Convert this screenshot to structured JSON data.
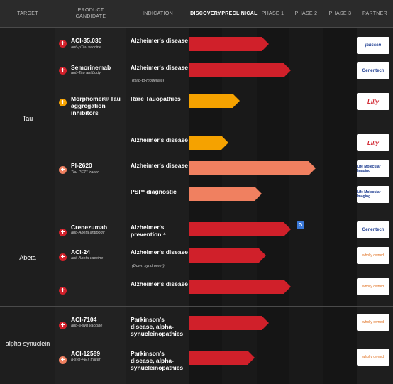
{
  "header": {
    "target": "TARGET",
    "product_candidate_1": "PRODUCT",
    "product_candidate_2": "CANDIDATE",
    "indication": "INDICATION",
    "discovery": "DISCOVERY",
    "preclinical": "PRECLINICAL",
    "phase1": "PHASE 1",
    "phase2": "PHASE 2",
    "phase3": "PHASE 3",
    "partner": "PARTNER"
  },
  "groups": {
    "tau": "Tau",
    "abeta": "Abeta",
    "alpha_synuclein": "alpha-synuclein"
  },
  "rows": [
    {
      "product": "ACI-35.030",
      "sub": "anti-pTau vaccine",
      "indication": "Alzheimer's disease",
      "ind_sub": "",
      "bar_color": "#d0202a",
      "progress_pct": 55,
      "partner": "janssen"
    },
    {
      "product": "Semorinemab",
      "sub": "anti-Tau antibody",
      "indication": "Alzheimer's disease",
      "ind_sub": "(mild-to-moderate)",
      "bar_color": "#d0202a",
      "progress_pct": 70,
      "partner": "Genentech"
    },
    {
      "product": "Morphomer® Tau aggregation inhibitors",
      "sub": "",
      "indication": "Rare Tauopathies",
      "ind_sub": "",
      "bar_color": "#f5a200",
      "progress_pct": 35,
      "partner": "Lilly"
    },
    {
      "product": "",
      "sub": "",
      "indication": "Alzheimer's disease",
      "ind_sub": "",
      "bar_color": "#f5a200",
      "progress_pct": 27,
      "partner": "Lilly"
    },
    {
      "product": "PI-2620",
      "sub": "Tau-PET² tracer",
      "indication": "Alzheimer's disease",
      "ind_sub": "",
      "bar_color": "#f08060",
      "progress_pct": 87,
      "partner": "Life Molecular Imaging"
    },
    {
      "product": "",
      "sub": "",
      "indication": "PSP³ diagnostic",
      "ind_sub": "",
      "bar_color": "#f08060",
      "progress_pct": 50,
      "partner": "Life Molecular Imaging"
    },
    {
      "product": "Crenezumab",
      "sub": "anti-Abeta antibody",
      "indication": "Alzheimer's prevention ⁴",
      "ind_sub": "",
      "bar_color": "#d0202a",
      "progress_pct": 70,
      "partner": "Genentech"
    },
    {
      "product": "ACI-24",
      "sub": "anti-Abeta vaccine",
      "indication": "Alzheimer's disease",
      "ind_sub": "(Down syndrome⁵)",
      "bar_color": "#d0202a",
      "progress_pct": 53,
      "partner": "wholly owned"
    },
    {
      "product": "",
      "sub": "",
      "indication": "Alzheimer's disease",
      "ind_sub": "",
      "bar_color": "#d0202a",
      "progress_pct": 70,
      "partner": "wholly owned"
    },
    {
      "product": "ACI-7104",
      "sub": "anti-a-syn vaccine",
      "indication": "Parkinson's disease, alpha-synucleinopathies",
      "ind_sub": "",
      "bar_color": "#d0202a",
      "progress_pct": 55,
      "partner": "wholly owned"
    },
    {
      "product": "ACI-12589",
      "sub": "a-syn-PET tracer",
      "indication": "Parkinson's disease, alpha-synucleinopathies",
      "ind_sub": "",
      "bar_color": "#d0202a",
      "progress_pct": 45,
      "partner": "wholly owned"
    }
  ],
  "plus_icon": "+",
  "translate_icon": "translate-icon"
}
